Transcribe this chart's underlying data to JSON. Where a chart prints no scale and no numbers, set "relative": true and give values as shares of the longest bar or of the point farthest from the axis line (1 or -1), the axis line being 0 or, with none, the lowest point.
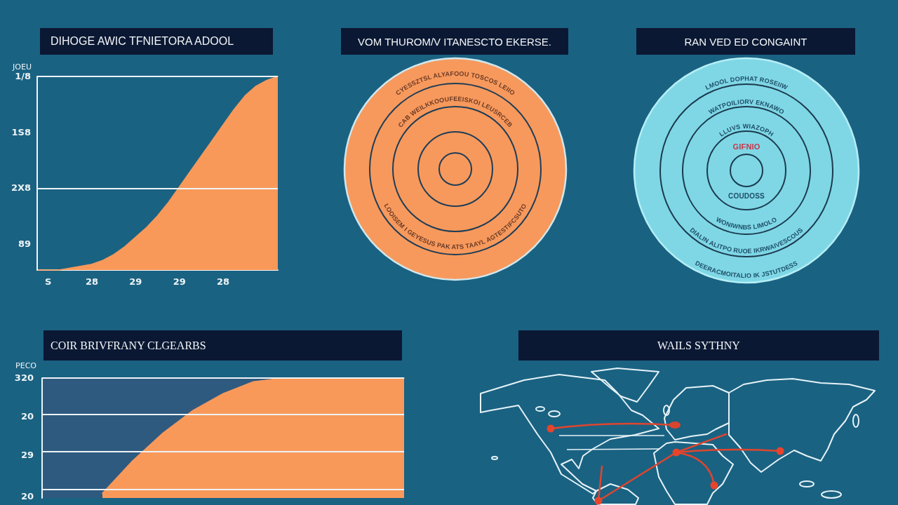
{
  "chart_data": [
    {
      "type": "area",
      "title": "DIHOGE AWIC TFNIETORA ADOOL",
      "ylabel": "JOEU",
      "relative": true,
      "categories": [
        null,
        "S",
        null,
        null,
        null,
        "28",
        null,
        null,
        null,
        "29",
        null,
        null,
        null,
        "29",
        null,
        null,
        null,
        "28",
        null,
        null,
        null,
        null,
        null
      ],
      "values": [
        0,
        0,
        0,
        0.01,
        0.02,
        0.03,
        0.05,
        0.08,
        0.12,
        0.17,
        0.22,
        0.28,
        0.35,
        0.43,
        0.51,
        0.59,
        0.67,
        0.75,
        0.83,
        0.9,
        0.95,
        0.98,
        1
      ],
      "color": "#f8995a",
      "ref_lines": [
        {
          "axis": "y",
          "value": 0.42
        },
        {
          "axis": "y",
          "value": 1
        }
      ],
      "annotations": [
        "1/8",
        "1S8",
        "2X8",
        "89"
      ]
    },
    {
      "type": "other",
      "title": "VOM THUROM/V ITANESCTO EKERSE.",
      "annotations": [
        "CYESSZTSL ALYAFOOU TOSCOS LEIIO",
        "CAB WEILKKOOUFEEISKOI LEUSRCEB",
        "LOOISEM I GEYESUS PAK ATS TAAYL AGTESTIFCSUTO"
      ]
    },
    {
      "type": "other",
      "title": "RAN VED ED CONGAINT",
      "annotations": [
        "LMOOL DOPHAT ROSEIIW",
        "WATPOILIORV EKNAWO",
        "LLUVS WIAZOPH",
        "GIFNIO",
        "COUDOSS",
        "WONIWNBS LIMOLO",
        "DIALIN ALITPO RUOE IKRWAIVESCOUS",
        "DEERACMOITALIO IK JSTUTDESS"
      ]
    },
    {
      "type": "area",
      "title": "COIR BRIVFRANY CLGEARBS",
      "ylabel": "PECO",
      "relative": true,
      "categories": [
        null,
        null,
        null,
        null,
        null,
        null,
        null,
        null,
        null,
        null,
        null,
        null,
        null
      ],
      "values": [
        null,
        null,
        0.04,
        0.31,
        0.54,
        0.73,
        0.87,
        0.97,
        1,
        1,
        1,
        1,
        1
      ],
      "color": "#f8995a",
      "ref_lines": [
        {
          "axis": "y",
          "value": 1
        },
        {
          "axis": "y",
          "value": 0.7
        },
        {
          "axis": "y",
          "value": 0.39
        },
        {
          "axis": "y",
          "value": 0.07
        }
      ],
      "annotations": [
        "320",
        "20",
        "29",
        "20"
      ]
    },
    {
      "type": "other",
      "title": "WAILS SYTHNY"
    }
  ]
}
